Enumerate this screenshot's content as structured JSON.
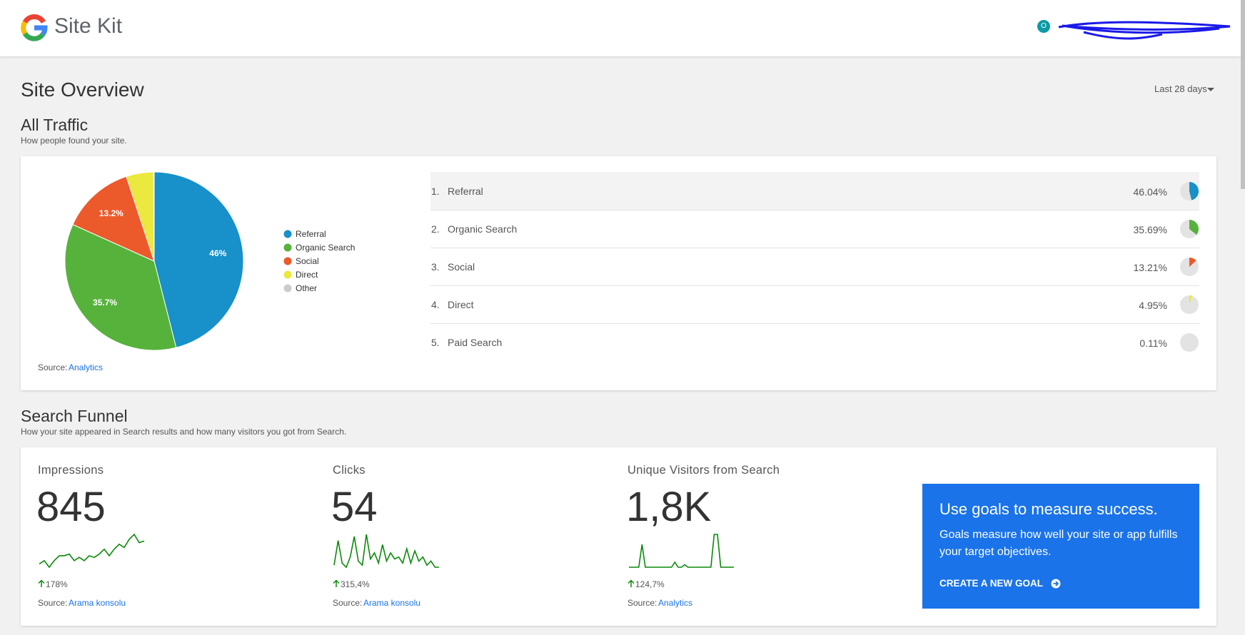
{
  "header": {
    "brand": "Site Kit",
    "avatar": "O"
  },
  "page": {
    "title": "Site Overview",
    "date_range": "Last 28 days"
  },
  "all_traffic": {
    "title": "All Traffic",
    "subtitle": "How people found your site.",
    "source_prefix": "Source:",
    "source_link": "Analytics",
    "chart_data": {
      "type": "pie",
      "categories": [
        "Referral",
        "Organic Search",
        "Social",
        "Direct",
        "Other"
      ],
      "values": [
        46.04,
        35.69,
        13.21,
        4.95,
        0.11
      ],
      "value_labels": [
        "46%",
        "35.7%",
        "13.2%",
        null,
        null
      ],
      "colors": [
        "#1890c9",
        "#56b23b",
        "#ec5a2b",
        "#ebe83e",
        "#cccccc"
      ]
    },
    "table": {
      "rows": [
        {
          "rank": "1.",
          "channel": "Referral",
          "value": 46.04,
          "label": "46.04%",
          "color": "#1890c9"
        },
        {
          "rank": "2.",
          "channel": "Organic Search",
          "value": 35.69,
          "label": "35.69%",
          "color": "#56b23b"
        },
        {
          "rank": "3.",
          "channel": "Social",
          "value": 13.21,
          "label": "13.21%",
          "color": "#ec5a2b"
        },
        {
          "rank": "4.",
          "channel": "Direct",
          "value": 4.95,
          "label": "4.95%",
          "color": "#ebe83e"
        },
        {
          "rank": "5.",
          "channel": "Paid Search",
          "value": 0.11,
          "label": "0.11%",
          "color": "#bbbbbb"
        }
      ]
    }
  },
  "search_funnel": {
    "title": "Search Funnel",
    "subtitle": "How your site appeared in Search results and how many visitors you got from Search.",
    "metrics": [
      {
        "label": "Impressions",
        "value": "845",
        "change": "178%",
        "source_prefix": "Source:",
        "source_link": "Arama konsolu",
        "trend": [
          4,
          6,
          2,
          6,
          9,
          9,
          10,
          6,
          8,
          6,
          9,
          8,
          10,
          13,
          9,
          13,
          16,
          14,
          19,
          22,
          17,
          18
        ]
      },
      {
        "label": "Clicks",
        "value": "54",
        "change": "315,4%",
        "source_prefix": "Source:",
        "source_link": "Arama konsolu",
        "trend": [
          2,
          14,
          3,
          1,
          6,
          16,
          4,
          2,
          17,
          5,
          8,
          3,
          12,
          4,
          8,
          5,
          6,
          3,
          10,
          3,
          9,
          4,
          6,
          2,
          4,
          1,
          1
        ]
      },
      {
        "label": "Unique Visitors from Search",
        "value": "1,8K",
        "change": "124,7%",
        "source_prefix": "Source:",
        "source_link": "Analytics",
        "trend": [
          1,
          1,
          1,
          1,
          10,
          1,
          1,
          1,
          1,
          1,
          1,
          1,
          1,
          1,
          3,
          1,
          1,
          2,
          1,
          1,
          1,
          1,
          1,
          1,
          1,
          1,
          14,
          14,
          1,
          1,
          1,
          1,
          1
        ]
      }
    ],
    "promo": {
      "title": "Use goals to measure success.",
      "body_lines": [
        "Goals measure how well your site or app fulfills",
        "your target objectives."
      ],
      "cta": "CREATE A NEW GOAL"
    }
  }
}
